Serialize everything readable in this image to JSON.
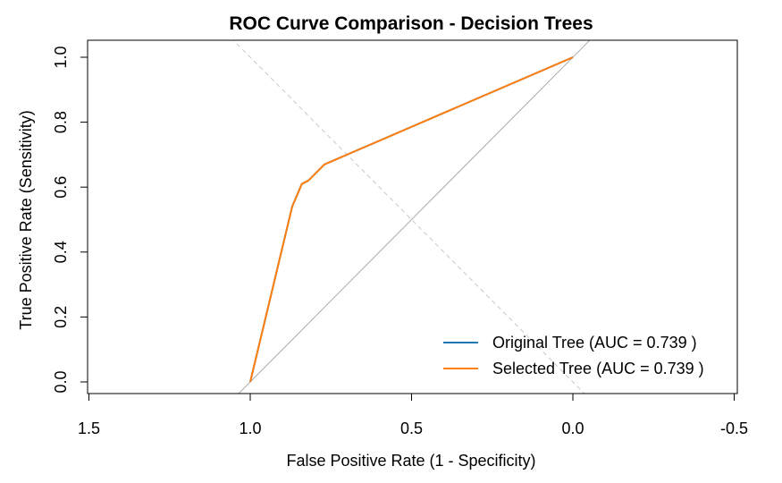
{
  "chart_data": {
    "type": "line",
    "title": "ROC Curve Comparison - Decision Trees",
    "xlabel": "False Positive Rate (1 - Specificity)",
    "ylabel": "True Positive Rate (Sensitivity)",
    "x_reversed": true,
    "xlim": [
      1.5,
      -0.5
    ],
    "ylim": [
      0.0,
      1.0
    ],
    "xticks": [
      1.5,
      1.0,
      0.5,
      0.0,
      -0.5
    ],
    "xtick_labels": [
      "1.5",
      "1.0",
      "0.5",
      "0.0",
      "-0.5"
    ],
    "yticks": [
      0.0,
      0.2,
      0.4,
      0.6,
      0.8,
      1.0
    ],
    "ytick_labels": [
      "0.0",
      "0.2",
      "0.4",
      "0.6",
      "0.8",
      "1.0"
    ],
    "grid": false,
    "legend_position": "bottom-right",
    "reference_lines": [
      {
        "kind": "chance-diagonal",
        "from": [
          1.0,
          0.0
        ],
        "to": [
          0.0,
          1.0
        ],
        "color": "#aaaaaa",
        "style": "solid"
      },
      {
        "kind": "cross-diagonal",
        "from": [
          1.0,
          1.0
        ],
        "to": [
          0.0,
          0.0
        ],
        "color": "#c8c8c8",
        "style": "dashed"
      }
    ],
    "series": [
      {
        "name": "Original Tree (AUC = 0.739 )",
        "color": "#1f77b4",
        "x": [
          1.0,
          0.87,
          0.84,
          0.82,
          0.77,
          0.0
        ],
        "y": [
          0.0,
          0.54,
          0.61,
          0.62,
          0.67,
          1.0
        ]
      },
      {
        "name": "Selected Tree (AUC = 0.739 )",
        "color": "#ff7f0e",
        "x": [
          1.0,
          0.87,
          0.84,
          0.82,
          0.77,
          0.0
        ],
        "y": [
          0.0,
          0.54,
          0.61,
          0.62,
          0.67,
          1.0
        ]
      }
    ]
  }
}
